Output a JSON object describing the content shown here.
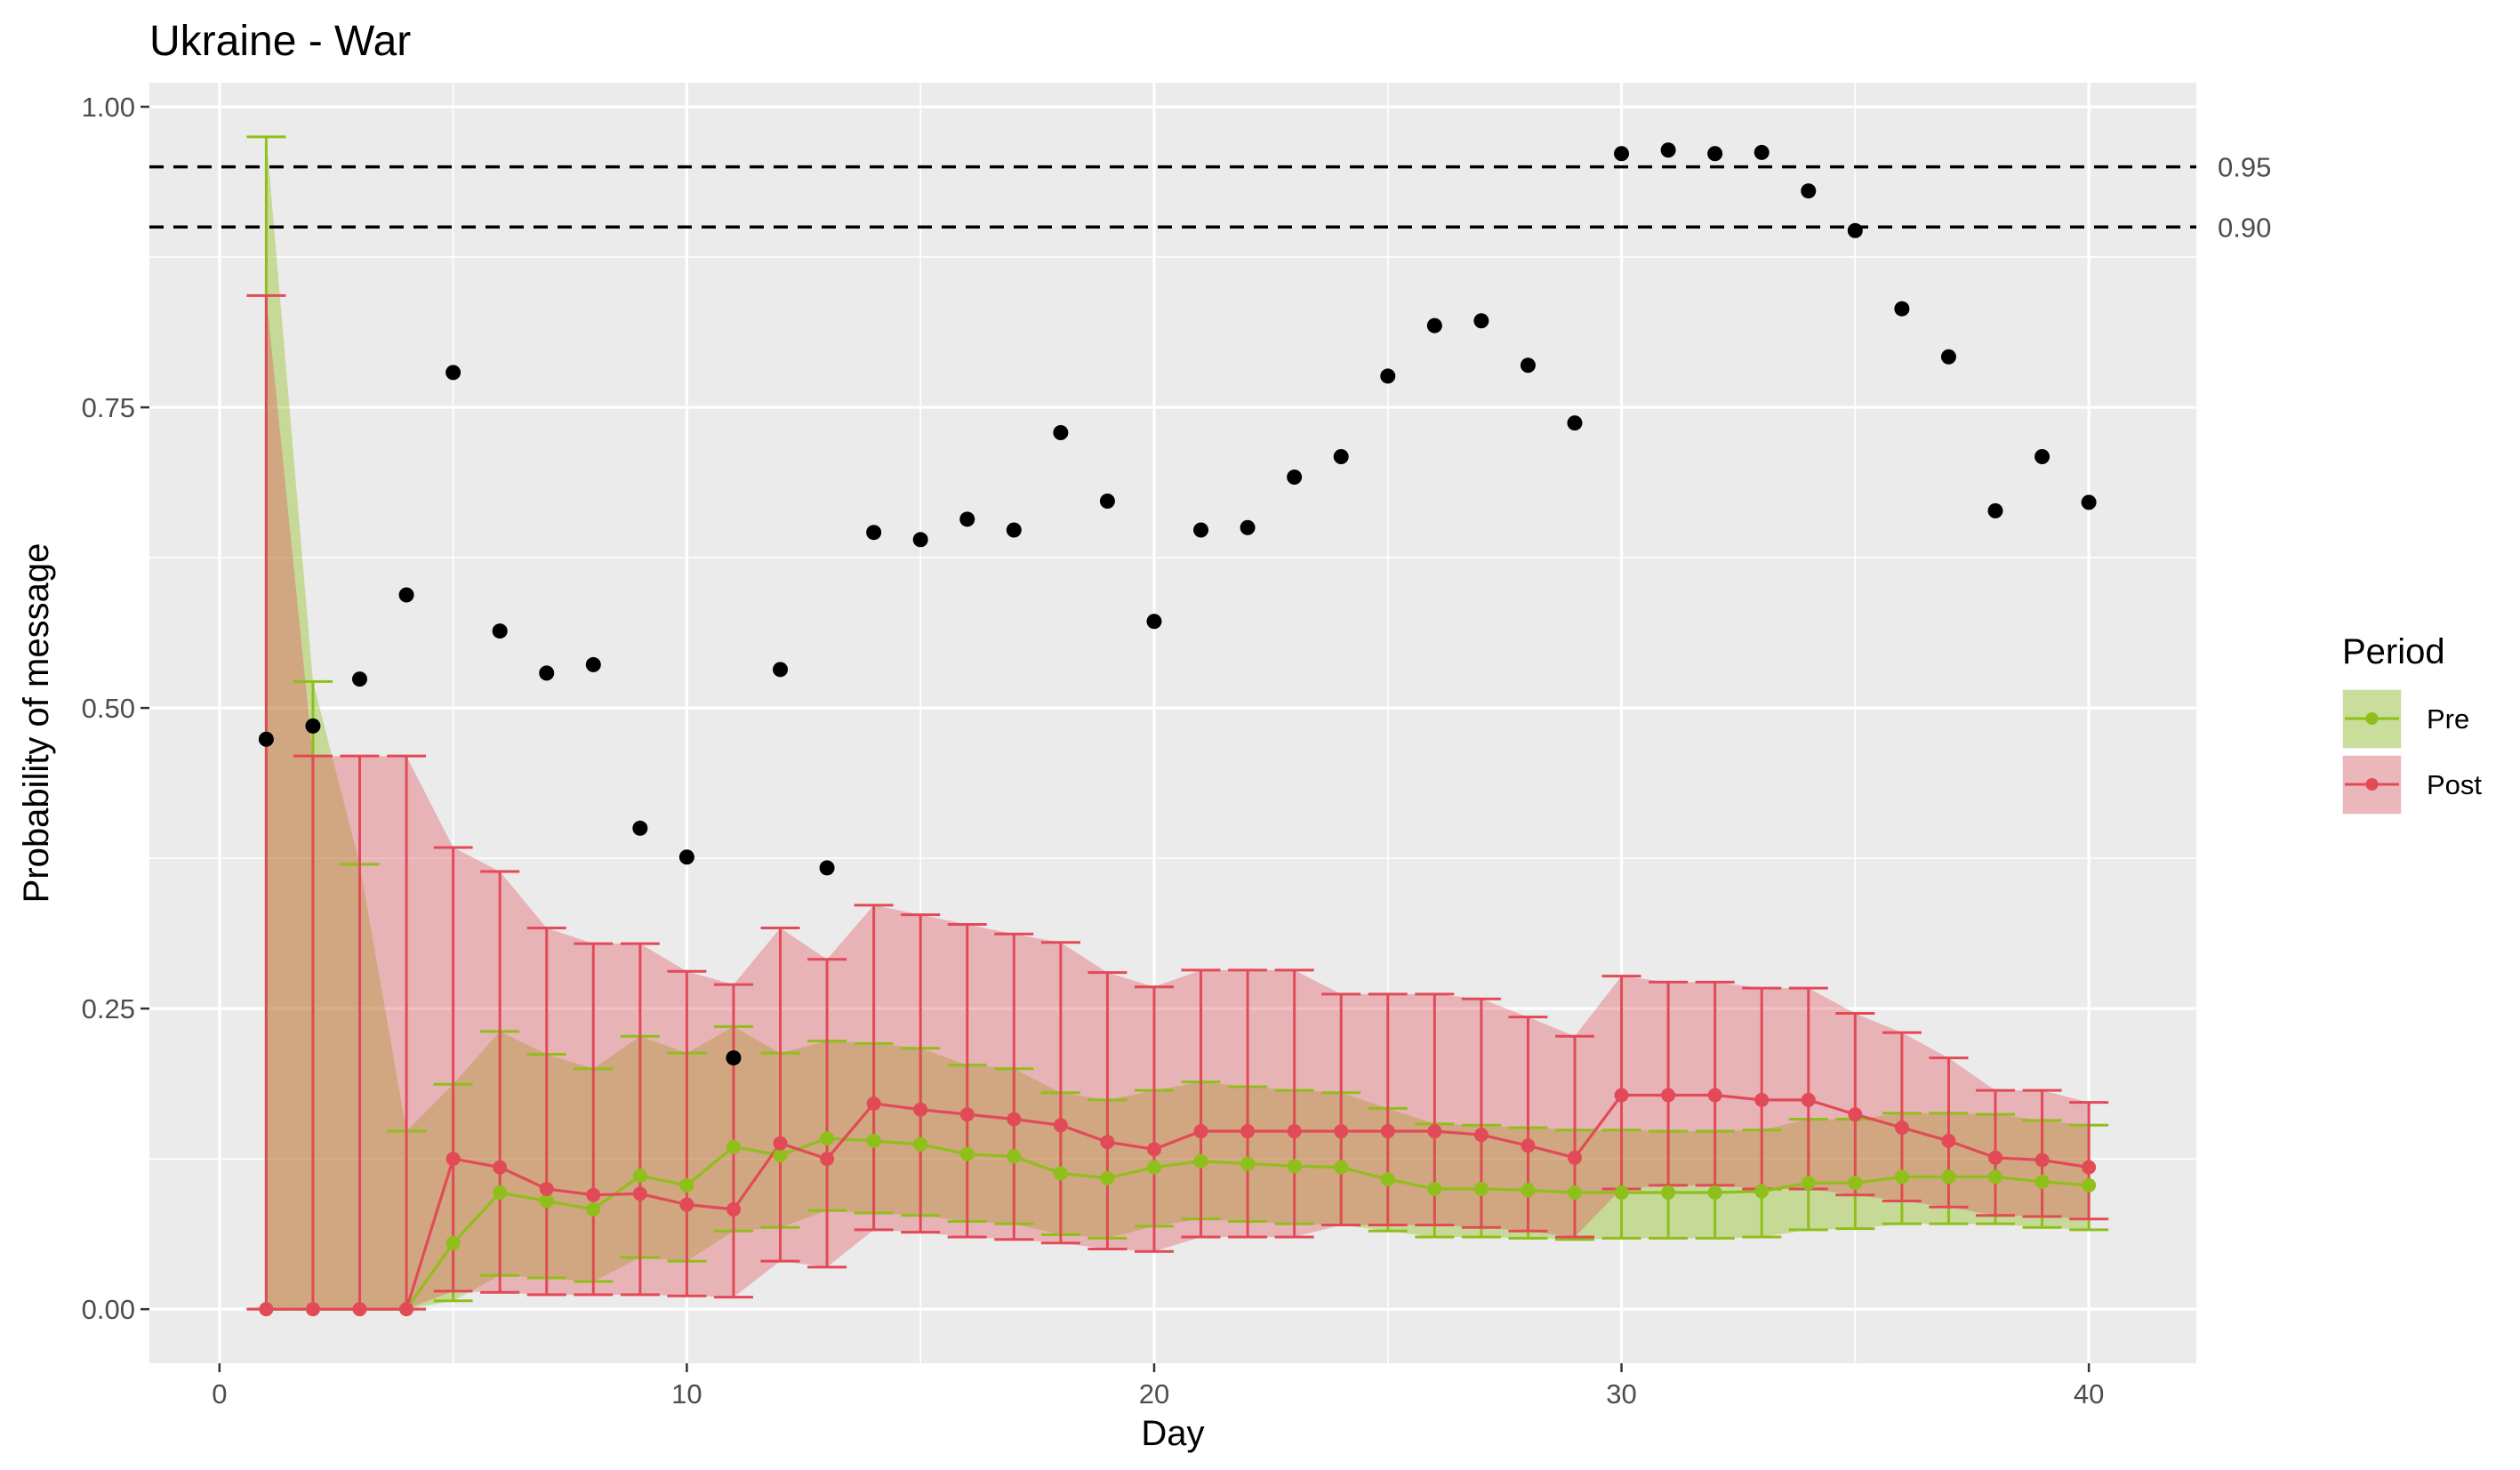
{
  "chart_data": {
    "type": "line",
    "title": "Ukraine - War",
    "xlabel": "Day",
    "ylabel": "Probability of message",
    "xlim": [
      -1.5,
      42.3
    ],
    "ylim": [
      -0.045,
      1.02
    ],
    "x_ticks": [
      0,
      10,
      20,
      30,
      40
    ],
    "x_tick_labels": [
      "0",
      "10",
      "20",
      "30",
      "40"
    ],
    "y_ticks": [
      0,
      0.25,
      0.5,
      0.75,
      1
    ],
    "y_tick_labels": [
      "0.00",
      "0.25",
      "0.50",
      "0.75",
      "1.00"
    ],
    "grid": true,
    "reference_lines": [
      {
        "value": 0.95,
        "label": "0.95",
        "style": "dashed",
        "color": "#000000"
      },
      {
        "value": 0.9,
        "label": "0.90",
        "style": "dashed",
        "color": "#000000"
      }
    ],
    "legend": {
      "title": "Period",
      "position": "right",
      "entries": [
        "Pre",
        "Post"
      ]
    },
    "colors": {
      "pre": "#8fbf1a",
      "post": "#e24a57",
      "points": "#000000",
      "panel": "#ebebeb",
      "grid": "#ffffff"
    },
    "x": [
      1,
      2,
      3,
      4,
      5,
      6,
      7,
      8,
      9,
      10,
      11,
      12,
      13,
      14,
      15,
      16,
      17,
      18,
      19,
      20,
      21,
      22,
      23,
      24,
      25,
      26,
      27,
      28,
      29,
      30,
      31,
      32,
      33,
      34,
      35,
      36,
      37,
      38,
      39,
      40
    ],
    "series": [
      {
        "name": "Pre",
        "values": [
          0,
          0,
          0,
          0,
          0.055,
          0.097,
          0.09,
          0.083,
          0.111,
          0.103,
          0.135,
          0.128,
          0.142,
          0.14,
          0.137,
          0.129,
          0.127,
          0.113,
          0.109,
          0.118,
          0.123,
          0.121,
          0.119,
          0.118,
          0.108,
          0.1,
          0.1,
          0.099,
          0.097,
          0.097,
          0.097,
          0.097,
          0.098,
          0.105,
          0.105,
          0.11,
          0.11,
          0.11,
          0.106,
          0.103
        ],
        "lower": [
          0,
          0,
          0,
          0,
          0.007,
          0.028,
          0.026,
          0.023,
          0.043,
          0.04,
          0.065,
          0.068,
          0.082,
          0.08,
          0.078,
          0.073,
          0.071,
          0.062,
          0.059,
          0.069,
          0.075,
          0.073,
          0.071,
          0.07,
          0.065,
          0.06,
          0.06,
          0.059,
          0.058,
          0.059,
          0.059,
          0.059,
          0.06,
          0.066,
          0.067,
          0.071,
          0.071,
          0.071,
          0.068,
          0.066
        ],
        "upper": [
          0.975,
          0.522,
          0.37,
          0.148,
          0.187,
          0.231,
          0.212,
          0.2,
          0.227,
          0.213,
          0.235,
          0.213,
          0.223,
          0.221,
          0.217,
          0.203,
          0.2,
          0.18,
          0.174,
          0.182,
          0.189,
          0.185,
          0.182,
          0.18,
          0.167,
          0.154,
          0.153,
          0.151,
          0.149,
          0.149,
          0.148,
          0.148,
          0.149,
          0.158,
          0.158,
          0.163,
          0.163,
          0.162,
          0.157,
          0.153
        ]
      },
      {
        "name": "Post",
        "values": [
          0,
          0,
          0,
          0,
          0.125,
          0.118,
          0.1,
          0.095,
          0.096,
          0.087,
          0.083,
          0.138,
          0.125,
          0.171,
          0.166,
          0.162,
          0.158,
          0.153,
          0.139,
          0.133,
          0.148,
          0.148,
          0.148,
          0.148,
          0.148,
          0.148,
          0.145,
          0.136,
          0.126,
          0.178,
          0.178,
          0.178,
          0.174,
          0.174,
          0.162,
          0.151,
          0.14,
          0.126,
          0.124,
          0.118
        ],
        "lower": [
          0,
          0,
          0,
          0,
          0.015,
          0.014,
          0.012,
          0.012,
          0.012,
          0.011,
          0.01,
          0.04,
          0.035,
          0.066,
          0.064,
          0.06,
          0.058,
          0.055,
          0.05,
          0.048,
          0.06,
          0.06,
          0.06,
          0.07,
          0.07,
          0.07,
          0.068,
          0.065,
          0.06,
          0.1,
          0.103,
          0.103,
          0.1,
          0.1,
          0.095,
          0.09,
          0.085,
          0.078,
          0.077,
          0.075
        ],
        "upper": [
          0.843,
          0.46,
          0.46,
          0.46,
          0.384,
          0.364,
          0.317,
          0.304,
          0.304,
          0.281,
          0.27,
          0.317,
          0.291,
          0.336,
          0.328,
          0.32,
          0.312,
          0.305,
          0.28,
          0.268,
          0.282,
          0.282,
          0.282,
          0.262,
          0.262,
          0.262,
          0.258,
          0.243,
          0.227,
          0.277,
          0.272,
          0.272,
          0.267,
          0.267,
          0.246,
          0.23,
          0.209,
          0.182,
          0.182,
          0.172
        ]
      }
    ],
    "points": [
      {
        "x": 1,
        "y": 0.474
      },
      {
        "x": 2,
        "y": 0.485
      },
      {
        "x": 3,
        "y": 0.524
      },
      {
        "x": 4,
        "y": 0.594
      },
      {
        "x": 5,
        "y": 0.779
      },
      {
        "x": 6,
        "y": 0.564
      },
      {
        "x": 7,
        "y": 0.529
      },
      {
        "x": 8,
        "y": 0.536
      },
      {
        "x": 9,
        "y": 0.4
      },
      {
        "x": 10,
        "y": 0.376
      },
      {
        "x": 11,
        "y": 0.209
      },
      {
        "x": 12,
        "y": 0.532
      },
      {
        "x": 13,
        "y": 0.367
      },
      {
        "x": 14,
        "y": 0.646
      },
      {
        "x": 15,
        "y": 0.64
      },
      {
        "x": 16,
        "y": 0.657
      },
      {
        "x": 17,
        "y": 0.648
      },
      {
        "x": 18,
        "y": 0.729
      },
      {
        "x": 19,
        "y": 0.672
      },
      {
        "x": 20,
        "y": 0.572
      },
      {
        "x": 21,
        "y": 0.648
      },
      {
        "x": 22,
        "y": 0.65
      },
      {
        "x": 23,
        "y": 0.692
      },
      {
        "x": 24,
        "y": 0.709
      },
      {
        "x": 25,
        "y": 0.776
      },
      {
        "x": 26,
        "y": 0.818
      },
      {
        "x": 27,
        "y": 0.822
      },
      {
        "x": 28,
        "y": 0.785
      },
      {
        "x": 29,
        "y": 0.737
      },
      {
        "x": 30,
        "y": 0.961
      },
      {
        "x": 31,
        "y": 0.964
      },
      {
        "x": 32,
        "y": 0.961
      },
      {
        "x": 33,
        "y": 0.962
      },
      {
        "x": 34,
        "y": 0.93
      },
      {
        "x": 35,
        "y": 0.897
      },
      {
        "x": 36,
        "y": 0.832
      },
      {
        "x": 37,
        "y": 0.792
      },
      {
        "x": 38,
        "y": 0.664
      },
      {
        "x": 39,
        "y": 0.709
      },
      {
        "x": 40,
        "y": 0.671
      }
    ]
  }
}
